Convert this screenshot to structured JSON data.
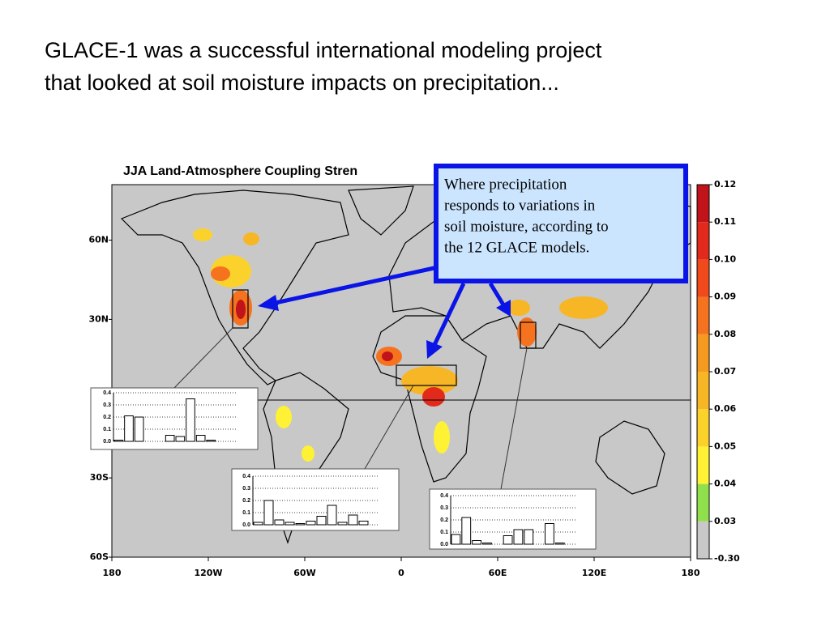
{
  "slide": {
    "title_lines": [
      "GLACE-1 was a successful international modeling project",
      "that looked at soil moisture impacts on precipitation..."
    ]
  },
  "map": {
    "title": "JJA Land-Atmosphere Coupling Stren",
    "xlim": [
      -180,
      180
    ],
    "ylim": [
      -60,
      81
    ],
    "xticks": [
      {
        "value": -180,
        "label": "180"
      },
      {
        "value": -120,
        "label": "120W"
      },
      {
        "value": -60,
        "label": "60W"
      },
      0,
      {
        "value": 60,
        "label": "60E"
      },
      {
        "value": 120,
        "label": "120E"
      },
      180
    ],
    "yticks": [
      {
        "value": 60,
        "label": "60N"
      },
      {
        "value": 30,
        "label": "30N"
      },
      {
        "value": -30,
        "label": "30S"
      },
      {
        "value": -60,
        "label": "60S"
      }
    ]
  },
  "colorbar": {
    "ticks": [
      {
        "value": -0.3,
        "label": "-0.30"
      },
      0.03,
      0.04,
      0.05,
      0.06,
      0.07,
      0.08,
      0.09,
      {
        "value": 0.1,
        "label": "0.10"
      },
      0.11,
      0.12
    ],
    "colors": [
      "#c8c8c8",
      "#8fe04c",
      "#fff133",
      "#fbd22b",
      "#f7b625",
      "#f59a20",
      "#f5721e",
      "#f04a1c",
      "#e22a1c",
      "#c0141a"
    ]
  },
  "callout": {
    "lines": [
      "Where precipitation",
      "responds to variations in",
      "soil moisture, according to",
      "the 12 GLACE models."
    ]
  },
  "insets": [
    {
      "ylim": [
        0,
        0.4
      ],
      "yticks": [
        {
          "value": 0,
          "label": "0.0"
        },
        0.1,
        0.2,
        0.3,
        0.4
      ],
      "values": [
        0.01,
        0.21,
        0.2,
        0,
        0,
        0.05,
        0.04,
        0.35,
        0.05,
        0.01,
        0,
        0
      ]
    },
    {
      "ylim": [
        0,
        0.4
      ],
      "yticks": [
        {
          "value": 0,
          "label": "0.0"
        },
        0.1,
        0.2,
        0.3,
        0.4
      ],
      "values": [
        0.02,
        0.2,
        0.04,
        0.02,
        0.01,
        0.03,
        0.07,
        0.16,
        0.02,
        0.08,
        0.03,
        0
      ]
    },
    {
      "ylim": [
        0,
        0.4
      ],
      "yticks": [
        {
          "value": 0,
          "label": "0.0"
        },
        0.1,
        0.2,
        0.3,
        0.4
      ],
      "values": [
        0.08,
        0.22,
        0.03,
        0.01,
        0,
        0.07,
        0.12,
        0.12,
        0,
        0.17,
        0.01,
        0
      ]
    }
  ]
}
